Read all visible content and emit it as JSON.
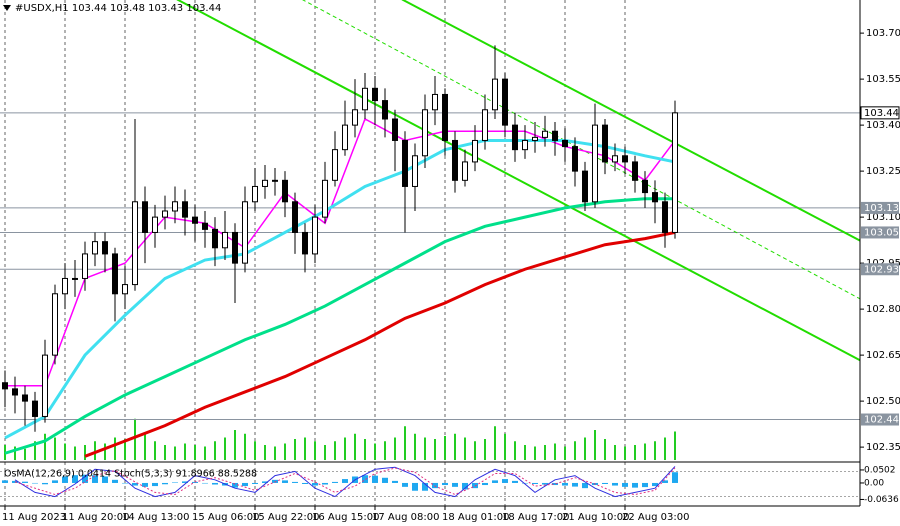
{
  "chart_data": {
    "type": "candlestick",
    "title": "#USDX,H1  103.44 103.48 103.43 103.44",
    "categories": [
      "11 Aug 2023",
      null,
      null,
      null,
      null,
      null,
      "11 Aug 20:00",
      null,
      null,
      null,
      null,
      null,
      "14 Aug 13:00",
      null,
      null,
      null,
      null,
      null,
      null,
      "15 Aug 06:00",
      null,
      null,
      null,
      null,
      null,
      "15 Aug 22:00",
      null,
      null,
      null,
      null,
      null,
      "16 Aug 15:00",
      null,
      null,
      null,
      null,
      null,
      "17 Aug 08:00",
      null,
      null,
      null,
      null,
      null,
      null,
      "18 Aug 01:00",
      null,
      null,
      null,
      null,
      null,
      "18 Aug 17:00",
      null,
      null,
      null,
      null,
      null,
      "21 Aug 10:00",
      null,
      null,
      null,
      null,
      null,
      "22 Aug 03:00",
      null,
      null,
      null,
      null,
      null
    ],
    "open": [
      102.56,
      102.54,
      102.52,
      102.5,
      102.45,
      102.65,
      102.85,
      102.9,
      102.9,
      102.98,
      103.02,
      102.98,
      102.85,
      102.88,
      103.15,
      103.05,
      103.1,
      103.12,
      103.15,
      103.1,
      103.08,
      103.06,
      103.0,
      103.05,
      102.95,
      103.15,
      103.2,
      103.22,
      103.22,
      103.15,
      103.05,
      102.98,
      103.1,
      103.22,
      103.32,
      103.4,
      103.45,
      103.52,
      103.48,
      103.42,
      103.35,
      103.2,
      103.3,
      103.45,
      103.5,
      103.35,
      103.22,
      103.28,
      103.35,
      103.45,
      103.55,
      103.4,
      103.32,
      103.35,
      103.36,
      103.38,
      103.35,
      103.33,
      103.25,
      103.15,
      103.4,
      103.28,
      103.3,
      103.28,
      103.22,
      103.18,
      103.15,
      103.05
    ],
    "high": [
      102.6,
      102.58,
      102.55,
      102.53,
      102.7,
      102.88,
      102.95,
      102.96,
      103.02,
      103.05,
      103.05,
      103.0,
      102.94,
      103.42,
      103.2,
      103.14,
      103.17,
      103.2,
      103.19,
      103.14,
      103.12,
      103.1,
      103.12,
      103.08,
      103.2,
      103.26,
      103.27,
      103.26,
      103.25,
      103.18,
      103.08,
      103.14,
      103.28,
      103.38,
      103.48,
      103.55,
      103.57,
      103.56,
      103.52,
      103.45,
      103.38,
      103.34,
      103.5,
      103.56,
      103.52,
      103.38,
      103.32,
      103.4,
      103.5,
      103.66,
      103.57,
      103.44,
      103.4,
      103.41,
      103.43,
      103.41,
      103.39,
      103.36,
      103.28,
      103.47,
      103.42,
      103.34,
      103.33,
      103.3,
      103.25,
      103.22,
      103.18,
      103.48
    ],
    "low": [
      102.48,
      102.46,
      102.42,
      102.4,
      102.43,
      102.62,
      102.8,
      102.84,
      102.86,
      102.94,
      102.92,
      102.76,
      102.8,
      102.86,
      102.95,
      103.0,
      103.06,
      103.08,
      103.04,
      103.02,
      103.0,
      102.94,
      102.96,
      102.82,
      102.92,
      103.12,
      103.16,
      103.17,
      103.1,
      102.98,
      102.92,
      102.95,
      103.08,
      103.2,
      103.3,
      103.36,
      103.42,
      103.4,
      103.36,
      103.25,
      103.05,
      103.12,
      103.26,
      103.4,
      103.3,
      103.18,
      103.2,
      103.25,
      103.32,
      103.42,
      103.36,
      103.28,
      103.29,
      103.31,
      103.33,
      103.3,
      103.28,
      103.2,
      103.12,
      103.13,
      103.24,
      103.25,
      103.24,
      103.18,
      103.13,
      103.08,
      103.0,
      103.03
    ],
    "close": [
      102.54,
      102.52,
      102.5,
      102.45,
      102.65,
      102.85,
      102.9,
      102.9,
      102.98,
      103.02,
      102.98,
      102.85,
      102.88,
      103.15,
      103.05,
      103.1,
      103.12,
      103.15,
      103.1,
      103.08,
      103.06,
      103.0,
      103.05,
      102.95,
      103.15,
      103.2,
      103.22,
      103.22,
      103.15,
      103.05,
      102.98,
      103.1,
      103.22,
      103.32,
      103.4,
      103.45,
      103.52,
      103.48,
      103.42,
      103.35,
      103.2,
      103.3,
      103.45,
      103.5,
      103.35,
      103.22,
      103.28,
      103.35,
      103.45,
      103.55,
      103.4,
      103.32,
      103.35,
      103.36,
      103.38,
      103.35,
      103.33,
      103.25,
      103.15,
      103.4,
      103.28,
      103.3,
      103.28,
      103.22,
      103.18,
      103.15,
      103.05,
      103.44
    ],
    "ylim": [
      102.308,
      103.808
    ],
    "yticks": [
      {
        "value": 103.7,
        "label": "103.70"
      },
      103.55,
      {
        "value": 103.4,
        "label": "103.40"
      },
      103.25,
      {
        "value": 103.1,
        "label": "103.10"
      },
      102.95,
      {
        "value": 102.8,
        "label": "102.80"
      },
      102.65,
      {
        "value": 102.5,
        "label": "102.50"
      },
      102.35
    ],
    "levels": [
      103.44,
      103.13,
      103.05,
      102.93,
      102.44
    ],
    "moving_averages": [
      {
        "color": "#ff00ff",
        "x": [
          0,
          4,
          8,
          12,
          16,
          20,
          24,
          28,
          32,
          36,
          40,
          44,
          48,
          52,
          56,
          60,
          64,
          67
        ],
        "values": [
          102.55,
          102.55,
          102.9,
          102.95,
          103.1,
          103.08,
          103.0,
          103.18,
          103.08,
          103.42,
          103.35,
          103.38,
          103.38,
          103.38,
          103.33,
          103.3,
          103.22,
          103.35
        ]
      },
      {
        "color": "#40e0f0",
        "x": [
          0,
          4,
          8,
          12,
          16,
          20,
          24,
          28,
          32,
          36,
          40,
          44,
          48,
          52,
          56,
          60,
          64,
          67
        ],
        "values": [
          102.38,
          102.45,
          102.65,
          102.78,
          102.9,
          102.96,
          102.98,
          103.05,
          103.12,
          103.2,
          103.25,
          103.32,
          103.35,
          103.35,
          103.35,
          103.33,
          103.3,
          103.28
        ]
      },
      {
        "color": "#00e08a",
        "x": [
          0,
          4,
          8,
          12,
          16,
          20,
          24,
          28,
          32,
          36,
          40,
          44,
          48,
          52,
          56,
          60,
          64,
          67
        ],
        "values": [
          102.33,
          102.37,
          102.45,
          102.52,
          102.58,
          102.64,
          102.7,
          102.75,
          102.81,
          102.88,
          102.95,
          103.02,
          103.07,
          103.1,
          103.13,
          103.15,
          103.16,
          103.16
        ]
      },
      {
        "color": "#e00000",
        "x": [
          8,
          12,
          16,
          20,
          24,
          28,
          32,
          36,
          40,
          44,
          48,
          52,
          56,
          60,
          64,
          67
        ],
        "values": [
          102.32,
          102.37,
          102.42,
          102.48,
          102.53,
          102.58,
          102.64,
          102.7,
          102.77,
          102.82,
          102.88,
          102.93,
          102.97,
          103.01,
          103.03,
          103.05
        ]
      }
    ],
    "trend_lines": [
      {
        "color": "#22dd00",
        "dashed": false,
        "x": [
          17.2,
          85.7
        ],
        "values": [
          103.81,
          102.63
        ]
      },
      {
        "color": "#22dd00",
        "dashed": false,
        "x": [
          39.7,
          85.7
        ],
        "values": [
          103.81,
          103.02
        ]
      },
      {
        "color": "#22dd00",
        "dashed": true,
        "x": [
          29.7,
          85.7
        ],
        "values": [
          103.81,
          102.83
        ]
      }
    ],
    "volume": {
      "color": "#22cc22",
      "values": [
        20,
        18,
        15,
        25,
        35,
        30,
        22,
        18,
        20,
        25,
        22,
        30,
        28,
        55,
        35,
        25,
        20,
        18,
        22,
        20,
        18,
        25,
        30,
        40,
        35,
        25,
        20,
        18,
        22,
        28,
        30,
        25,
        20,
        25,
        30,
        35,
        28,
        22,
        25,
        30,
        45,
        35,
        30,
        28,
        32,
        35,
        30,
        25,
        28,
        45,
        35,
        25,
        20,
        18,
        20,
        22,
        18,
        25,
        30,
        40,
        28,
        20,
        18,
        20,
        22,
        25,
        30,
        38
      ]
    },
    "oscillator": {
      "title": "OsMA(12,26,9) 0.0414 Stoch(5,3,3) 91.8966 88.5288",
      "ylim": [
        -0.085,
        0.077
      ],
      "yticks": [
        0.0502,
        {
          "value": 0,
          "label": "0.00"
        },
        -0.0636
      ],
      "osma": {
        "color": "#1fa8f0",
        "values": [
          0.01,
          0.008,
          0.005,
          0.0,
          -0.005,
          0.01,
          0.025,
          0.03,
          0.032,
          0.03,
          0.025,
          0.012,
          0.0,
          -0.01,
          -0.015,
          -0.012,
          -0.005,
          0.002,
          0.006,
          0.004,
          0.0,
          -0.006,
          -0.01,
          -0.018,
          -0.012,
          -0.004,
          0.006,
          0.012,
          0.01,
          0.004,
          -0.004,
          -0.01,
          -0.006,
          0.004,
          0.015,
          0.025,
          0.03,
          0.028,
          0.02,
          0.008,
          -0.015,
          -0.03,
          -0.03,
          -0.02,
          -0.008,
          -0.015,
          -0.025,
          -0.02,
          -0.008,
          0.01,
          0.015,
          0.008,
          0.0,
          -0.004,
          -0.006,
          -0.008,
          -0.01,
          -0.014,
          -0.02,
          -0.008,
          -0.004,
          -0.01,
          -0.015,
          -0.018,
          -0.016,
          -0.012,
          0.01,
          0.0414
        ]
      },
      "stoch_lim": [
        0,
        100
      ],
      "stoch_levels": [
        80,
        20
      ],
      "stoch": [
        {
          "color": "#3030e0",
          "dashed": false,
          "values": [
            60,
            30,
            20,
            50,
            85,
            80,
            40,
            20,
            30,
            70,
            60,
            40,
            30,
            70,
            80,
            40,
            20,
            60,
            85,
            90,
            70,
            30,
            20,
            60,
            85,
            70,
            30,
            60,
            70,
            40,
            20,
            30,
            40,
            91.8966
          ]
        },
        {
          "color": "#e03080",
          "dashed": true,
          "values": [
            55,
            40,
            25,
            40,
            70,
            82,
            55,
            30,
            25,
            55,
            65,
            50,
            35,
            55,
            75,
            55,
            30,
            45,
            75,
            88,
            78,
            45,
            25,
            45,
            75,
            75,
            45,
            50,
            65,
            50,
            30,
            25,
            35,
            88.5288
          ]
        }
      ]
    }
  }
}
